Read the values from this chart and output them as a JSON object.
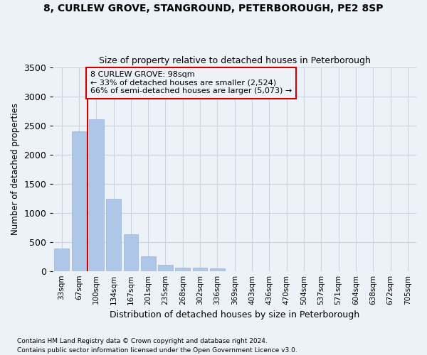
{
  "title1": "8, CURLEW GROVE, STANGROUND, PETERBOROUGH, PE2 8SP",
  "title2": "Size of property relative to detached houses in Peterborough",
  "xlabel": "Distribution of detached houses by size in Peterborough",
  "ylabel": "Number of detached properties",
  "footnote1": "Contains HM Land Registry data © Crown copyright and database right 2024.",
  "footnote2": "Contains public sector information licensed under the Open Government Licence v3.0.",
  "annotation_line1": "8 CURLEW GROVE: 98sqm",
  "annotation_line2": "← 33% of detached houses are smaller (2,524)",
  "annotation_line3": "66% of semi-detached houses are larger (5,073) →",
  "categories": [
    "33sqm",
    "67sqm",
    "100sqm",
    "134sqm",
    "167sqm",
    "201sqm",
    "235sqm",
    "268sqm",
    "302sqm",
    "336sqm",
    "369sqm",
    "403sqm",
    "436sqm",
    "470sqm",
    "504sqm",
    "537sqm",
    "571sqm",
    "604sqm",
    "638sqm",
    "672sqm",
    "705sqm"
  ],
  "values": [
    390,
    2400,
    2600,
    1240,
    630,
    250,
    105,
    60,
    60,
    40,
    0,
    0,
    0,
    0,
    0,
    0,
    0,
    0,
    0,
    0,
    0
  ],
  "bar_color": "#aec6e8",
  "bar_edge_color": "#9ab4d8",
  "vline_color": "#cc0000",
  "vline_x_idx": 2,
  "grid_color": "#c8d4e0",
  "bg_color": "#edf2f8",
  "annotation_box_color": "#cc0000",
  "ylim": [
    0,
    3500
  ],
  "yticks": [
    0,
    500,
    1000,
    1500,
    2000,
    2500,
    3000,
    3500
  ]
}
